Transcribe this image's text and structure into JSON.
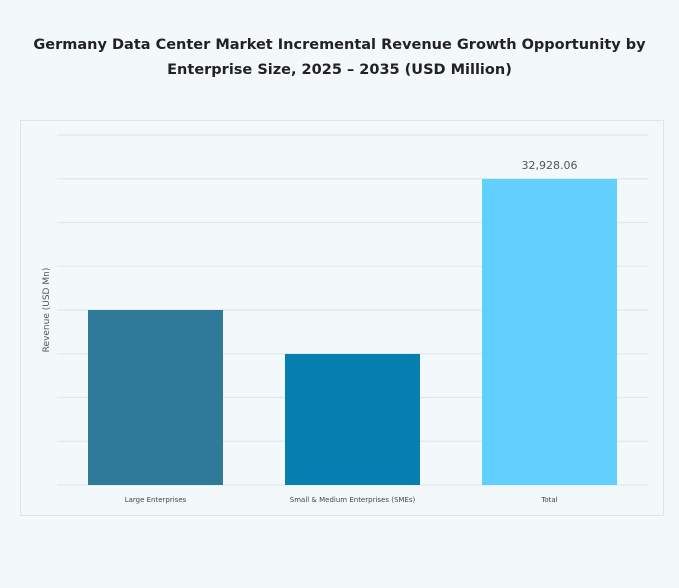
{
  "chart_data": {
    "type": "bar",
    "title": "Germany Data Center Market Incremental Revenue Growth Opportunity by Enterprise Size, 2025 – 2035 (USD Million)",
    "title_lines": [
      "Germany Data Center Market Incremental Revenue Growth Opportunity by",
      "Enterprise Size, 2025 – 2035 (USD Million)"
    ],
    "xlabel": "",
    "ylabel": "Revenue (USD Mn)",
    "categories": [
      "Large Enterprises",
      "Small & Medium Enterprises (SMEs)",
      "Total"
    ],
    "values": [
      18831,
      14097,
      32928.06
    ],
    "data_labels": [
      "",
      "",
      "32,928.06"
    ],
    "colors": [
      "#2f7a99",
      "#0680b0",
      "#62d0ff"
    ],
    "ylim": [
      0,
      37660
    ],
    "grid": true,
    "gridlines": 8,
    "legend": "none"
  }
}
